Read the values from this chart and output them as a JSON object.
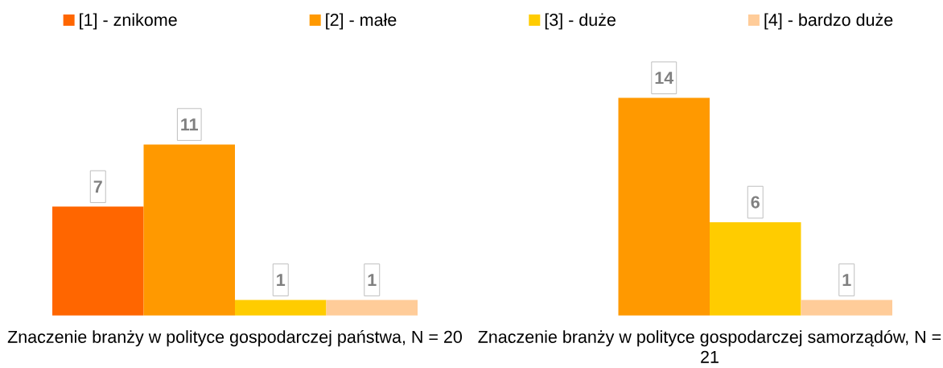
{
  "chart_data": {
    "type": "bar",
    "categories": [
      "Znaczenie branży w polityce gospodarczej państwa, N = 20",
      "Znaczenie branży w polityce gospodarczej samorządów, N = 21"
    ],
    "series": [
      {
        "name": "[1] - znikome",
        "color": "#ff6600",
        "values": [
          7,
          null
        ]
      },
      {
        "name": "[2] - małe",
        "color": "#ff9900",
        "values": [
          11,
          14
        ]
      },
      {
        "name": "[3] - duże",
        "color": "#ffcc00",
        "values": [
          1,
          6
        ]
      },
      {
        "name": "[4] - bardzo duże",
        "color": "#ffcc99",
        "values": [
          1,
          1
        ]
      }
    ],
    "tick_labels": "x",
    "data_labels": true,
    "legend": "top"
  }
}
